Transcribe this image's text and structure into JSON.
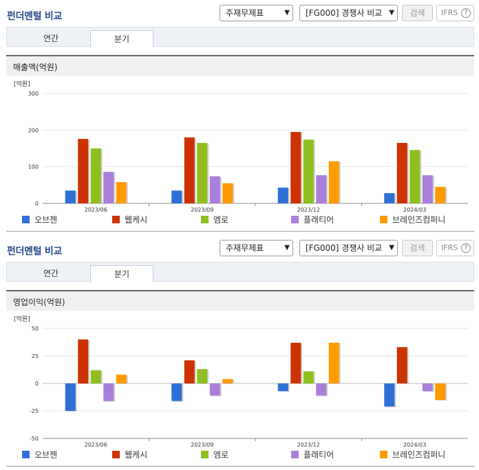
{
  "panels": [
    {
      "title": "펀더멘털 비교",
      "select1": "주재무제표",
      "select2": "[FG000] 경쟁사 비교",
      "search_label": "검색",
      "ifrs_label": "IFRS",
      "ifrs_help": "?",
      "tabs": [
        "연간",
        "분기"
      ],
      "active_tab": "분기",
      "section_title": "매출액(억원)"
    },
    {
      "title": "펀더멘털 비교",
      "select1": "주재무제표",
      "select2": "[FG000] 경쟁사 비교",
      "search_label": "검색",
      "ifrs_label": "IFRS",
      "ifrs_help": "?",
      "tabs": [
        "연간",
        "분기"
      ],
      "active_tab": "분기",
      "section_title": "영업이익(억원)"
    }
  ],
  "colors": {
    "오브젠": "#2f6fd6",
    "웹케시": "#cc3300",
    "엠로": "#8fbf1f",
    "플래티어": "#a97fd9",
    "브레인즈컴퍼니": "#ff9a00"
  },
  "chart_data": [
    {
      "type": "bar",
      "unit_label": "[억원]",
      "categories": [
        "2023/06",
        "2023/09",
        "2023/12",
        "2024/03"
      ],
      "ylim": [
        0,
        300
      ],
      "yticks": [
        0,
        100,
        200,
        300
      ],
      "series": [
        {
          "name": "오브젠",
          "values": [
            35,
            35,
            43,
            28
          ]
        },
        {
          "name": "웹케시",
          "values": [
            176,
            180,
            195,
            165
          ]
        },
        {
          "name": "엠로",
          "values": [
            150,
            165,
            174,
            146
          ]
        },
        {
          "name": "플래티어",
          "values": [
            86,
            74,
            77,
            77
          ]
        },
        {
          "name": "브레인즈컴퍼니",
          "values": [
            58,
            55,
            115,
            45
          ]
        }
      ],
      "legend_position": "bottom"
    },
    {
      "type": "bar",
      "unit_label": "[억원]",
      "categories": [
        "2023/06",
        "2023/09",
        "2023/12",
        "2024/03"
      ],
      "ylim": [
        -50,
        50
      ],
      "yticks": [
        -50,
        -25,
        0,
        25,
        50
      ],
      "series": [
        {
          "name": "오브젠",
          "values": [
            -25,
            -16,
            -7,
            -21
          ]
        },
        {
          "name": "웹케시",
          "values": [
            40,
            21,
            37,
            33
          ]
        },
        {
          "name": "엠로",
          "values": [
            12,
            13,
            11,
            0
          ]
        },
        {
          "name": "플래티어",
          "values": [
            -16,
            -11,
            -11,
            -7
          ]
        },
        {
          "name": "브레인즈컴퍼니",
          "values": [
            8,
            4,
            37,
            -15
          ]
        }
      ],
      "legend_position": "bottom"
    }
  ]
}
